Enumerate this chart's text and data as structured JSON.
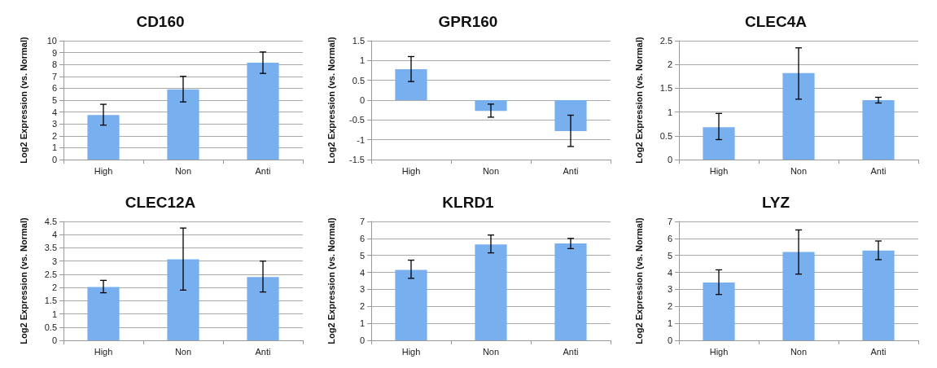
{
  "chart_data": [
    {
      "type": "bar",
      "title": "CD160",
      "ylabel": "Log2 Expression (vs. Normal)",
      "categories": [
        "High",
        "Non",
        "Anti"
      ],
      "values": [
        3.75,
        5.9,
        8.15
      ],
      "errors": [
        [
          2.9,
          4.65
        ],
        [
          4.85,
          7.0
        ],
        [
          7.25,
          9.05
        ]
      ],
      "color": "#78b0ef",
      "ylim": [
        0,
        10
      ],
      "yticks": [
        0,
        1,
        2,
        3,
        4,
        5,
        6,
        7,
        8,
        9,
        10
      ],
      "grid": "y"
    },
    {
      "type": "bar",
      "title": "GPR160",
      "ylabel": "Log2 Expression (vs. Normal)",
      "categories": [
        "High",
        "Non",
        "Anti"
      ],
      "values": [
        0.78,
        -0.27,
        -0.78
      ],
      "errors": [
        [
          0.47,
          1.1
        ],
        [
          -0.43,
          -0.1
        ],
        [
          -1.17,
          -0.38
        ]
      ],
      "color": "#78b0ef",
      "ylim": [
        -1.5,
        1.5
      ],
      "yticks": [
        -1.5,
        -1,
        -0.5,
        0,
        0.5,
        1,
        1.5
      ],
      "grid": "y"
    },
    {
      "type": "bar",
      "title": "CLEC4A",
      "ylabel": "Log2 Expression (vs. Normal)",
      "categories": [
        "High",
        "Non",
        "Anti"
      ],
      "values": [
        0.68,
        1.82,
        1.25
      ],
      "errors": [
        [
          0.42,
          0.97
        ],
        [
          1.27,
          2.35
        ],
        [
          1.19,
          1.31
        ]
      ],
      "color": "#78b0ef",
      "ylim": [
        0,
        2.5
      ],
      "yticks": [
        0,
        0.5,
        1,
        1.5,
        2,
        2.5
      ],
      "grid": "y"
    },
    {
      "type": "bar",
      "title": "CLEC12A",
      "ylabel": "Log2 Expression (vs. Normal)",
      "categories": [
        "High",
        "Non",
        "Anti"
      ],
      "values": [
        2.02,
        3.07,
        2.4
      ],
      "errors": [
        [
          1.8,
          2.27
        ],
        [
          1.9,
          4.25
        ],
        [
          1.83,
          3.0
        ]
      ],
      "color": "#78b0ef",
      "ylim": [
        0,
        4.5
      ],
      "yticks": [
        0,
        0.5,
        1,
        1.5,
        2,
        2.5,
        3,
        3.5,
        4,
        4.5
      ],
      "grid": "y"
    },
    {
      "type": "bar",
      "title": "KLRD1",
      "ylabel": "Log2 Expression (vs. Normal)",
      "categories": [
        "High",
        "Non",
        "Anti"
      ],
      "values": [
        4.15,
        5.65,
        5.7
      ],
      "errors": [
        [
          3.65,
          4.72
        ],
        [
          5.15,
          6.2
        ],
        [
          5.4,
          6.0
        ]
      ],
      "color": "#78b0ef",
      "ylim": [
        0,
        7
      ],
      "yticks": [
        0,
        1,
        2,
        3,
        4,
        5,
        6,
        7
      ],
      "grid": "y"
    },
    {
      "type": "bar",
      "title": "LYZ",
      "ylabel": "Log2 Expression (vs. Normal)",
      "categories": [
        "High",
        "Non",
        "Anti"
      ],
      "values": [
        3.4,
        5.2,
        5.28
      ],
      "errors": [
        [
          2.7,
          4.15
        ],
        [
          3.9,
          6.5
        ],
        [
          4.75,
          5.85
        ]
      ],
      "color": "#78b0ef",
      "ylim": [
        0,
        7
      ],
      "yticks": [
        0,
        1,
        2,
        3,
        4,
        5,
        6,
        7
      ],
      "grid": "y"
    }
  ]
}
